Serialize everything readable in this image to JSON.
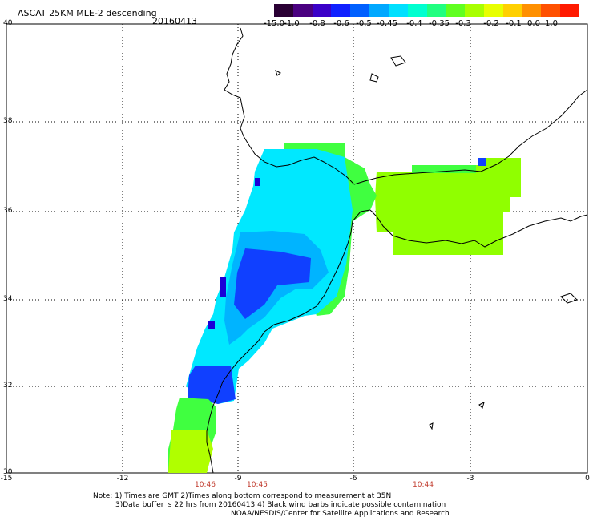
{
  "title": "ASCAT 25KM MLE-2 descending",
  "date": "20160413",
  "colorbar": {
    "labels": [
      "-15.0",
      "-1.0",
      "-0.8",
      "-0.6",
      "-0.5",
      "-0.45",
      "-0.4",
      "-0.35",
      "-0.3",
      "-0.2",
      "-0.1",
      "0.0",
      "1.0"
    ],
    "colors": [
      "#2a0034",
      "#4a0080",
      "#3a00c8",
      "#1020ff",
      "#0060ff",
      "#00a8ff",
      "#00e0ff",
      "#00ffd0",
      "#20ff80",
      "#60ff20",
      "#a8ff00",
      "#e8ff00",
      "#ffd000",
      "#ff9000",
      "#ff5000",
      "#ff1a00"
    ]
  },
  "axes": {
    "lat_labels": [
      "40",
      "38",
      "36",
      "34",
      "32",
      "30"
    ],
    "lon_labels": [
      "-15",
      "-12",
      "-9",
      "-6",
      "-3",
      "0"
    ]
  },
  "pass_times": [
    "10:46",
    "10:45",
    "10:44"
  ],
  "notes": {
    "line1": "Note: 1) Times are GMT 2)Times along bottom correspond to measurement at 35N",
    "line2": "3)Data buffer is 22 hrs from 20160413 4) Black wind barbs indicate possible contamination",
    "line3": "NOAA/NESDIS/Center for Satellite Applications and Research"
  },
  "swath_colors": {
    "deep_blue": "#1a00d8",
    "blue": "#1040ff",
    "mid_blue": "#0080ff",
    "cyan_blue": "#00b4ff",
    "cyan": "#00e8ff",
    "aqua": "#00ffcc",
    "green": "#40ff40",
    "yellow_green": "#90ff00",
    "lime": "#b0ff00"
  }
}
